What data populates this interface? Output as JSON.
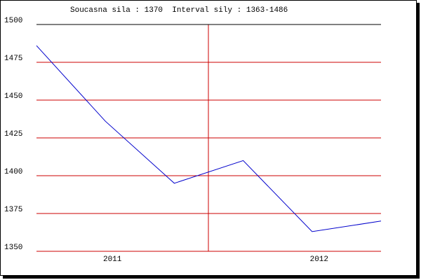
{
  "chart_data": {
    "type": "line",
    "title": "Soucasna sila : 1370  Interval sily : 1363-1486",
    "categories": [
      null,
      "2011",
      null,
      null,
      "2012",
      null
    ],
    "series": [
      {
        "color": "#0000cc",
        "values": [
          1486,
          1436,
          1395,
          1410,
          1363,
          1370
        ]
      }
    ],
    "ylim": [
      1350,
      1500
    ],
    "yticks": [
      1350,
      1375,
      1400,
      1425,
      1450,
      1475,
      1500
    ],
    "grid": true,
    "grid_color": "#cc0000"
  }
}
